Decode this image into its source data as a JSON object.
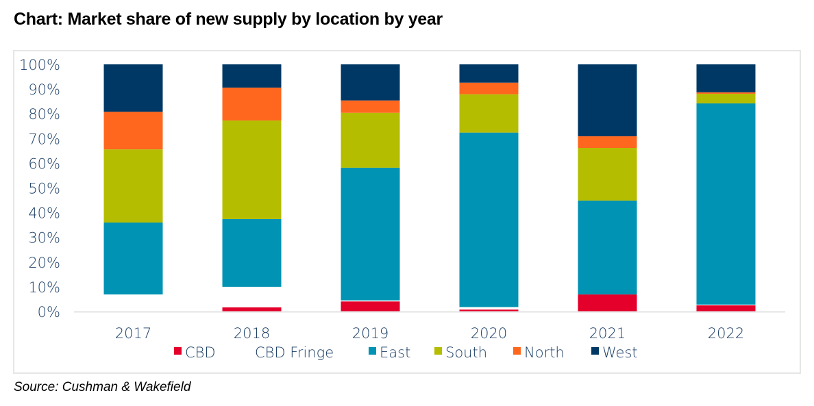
{
  "title": "Chart: Market share of new supply by location by year",
  "source": "Source: Cushman & Wakefield",
  "chart_data": {
    "type": "bar",
    "stacked": true,
    "percent_stacked": true,
    "title": "Chart: Market share of new supply by location by year",
    "xlabel": "",
    "ylabel": "",
    "ylim": [
      0,
      100
    ],
    "yticks": [
      "0%",
      "10%",
      "20%",
      "30%",
      "40%",
      "50%",
      "60%",
      "70%",
      "80%",
      "90%",
      "100%"
    ],
    "categories": [
      "2017",
      "2018",
      "2019",
      "2020",
      "2021",
      "2022"
    ],
    "legend_position": "bottom",
    "grid": false,
    "series": [
      {
        "name": "CBD",
        "color": "#E4002B",
        "values": [
          0.0,
          1.7,
          4.1,
          0.8,
          6.9,
          2.5
        ]
      },
      {
        "name": "CBD Fringe",
        "color": "#FFFFFF",
        "values": [
          6.9,
          8.3,
          0.4,
          1.0,
          0.0,
          0.3
        ]
      },
      {
        "name": "East",
        "color": "#0093B3",
        "values": [
          29.1,
          27.4,
          53.7,
          70.6,
          38.0,
          81.4
        ]
      },
      {
        "name": "South",
        "color": "#B5BD00",
        "values": [
          29.6,
          39.9,
          22.2,
          15.5,
          21.3,
          3.9
        ]
      },
      {
        "name": "North",
        "color": "#FF671F",
        "values": [
          15.2,
          13.3,
          5.0,
          4.7,
          4.7,
          0.6
        ]
      },
      {
        "name": "West",
        "color": "#003865",
        "values": [
          19.2,
          9.4,
          14.6,
          7.4,
          29.1,
          11.3
        ]
      }
    ]
  }
}
